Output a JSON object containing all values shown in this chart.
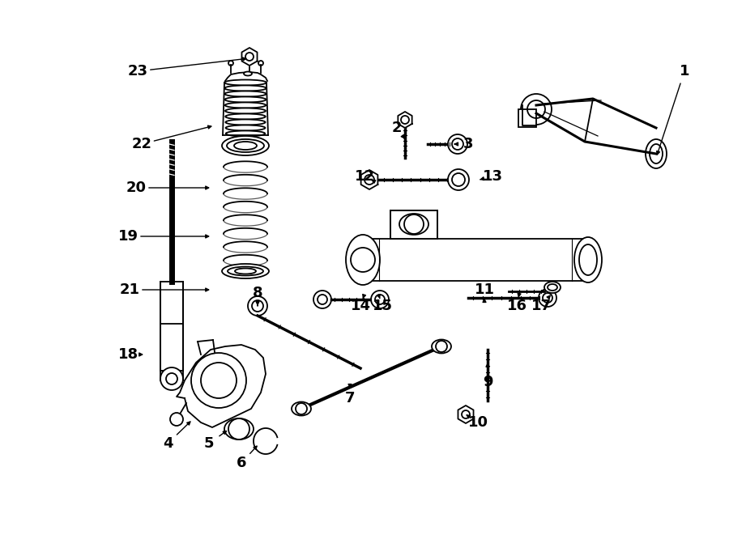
{
  "bg_color": "#ffffff",
  "line_color": "#000000",
  "label_color": "#000000",
  "fig_width": 9.0,
  "fig_height": 6.61,
  "dpi": 100,
  "labels": {
    "1": [
      845,
      88,
      810,
      195
    ],
    "2": [
      490,
      158,
      500,
      172
    ],
    "3": [
      578,
      178,
      560,
      178
    ],
    "4": [
      207,
      548,
      238,
      518
    ],
    "5": [
      258,
      548,
      283,
      530
    ],
    "6": [
      298,
      572,
      320,
      548
    ],
    "7": [
      432,
      492,
      432,
      480
    ],
    "8": [
      318,
      362,
      318,
      378
    ],
    "9": [
      602,
      472,
      602,
      445
    ],
    "10": [
      590,
      522,
      575,
      512
    ],
    "11": [
      598,
      358,
      598,
      368
    ],
    "12": [
      450,
      218,
      458,
      222
    ],
    "13": [
      608,
      218,
      592,
      222
    ],
    "14": [
      445,
      378,
      447,
      372
    ],
    "15": [
      472,
      378,
      470,
      372
    ],
    "16": [
      638,
      378,
      640,
      368
    ],
    "17": [
      668,
      378,
      682,
      362
    ],
    "18": [
      158,
      438,
      180,
      438
    ],
    "19": [
      158,
      292,
      262,
      292
    ],
    "20": [
      168,
      232,
      262,
      232
    ],
    "21": [
      160,
      358,
      262,
      358
    ],
    "22": [
      175,
      178,
      265,
      155
    ],
    "23": [
      170,
      88,
      308,
      72
    ]
  }
}
